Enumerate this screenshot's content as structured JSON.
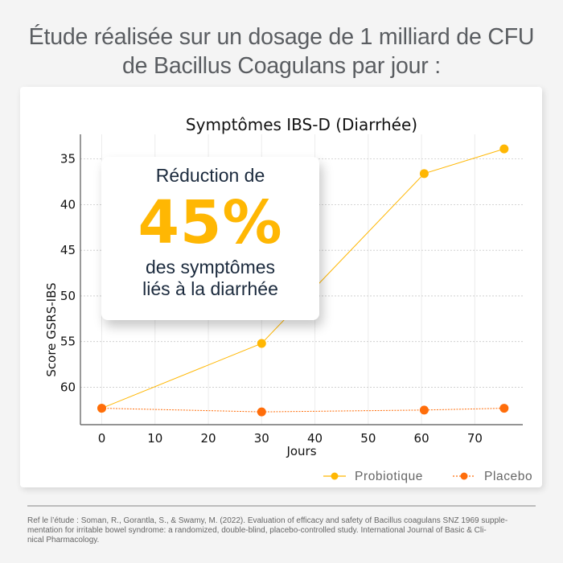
{
  "headline": {
    "line1": "Étude réalisée sur un dosage de 1 milliard de CFU",
    "line2": "de Bacillus Coagulans par jour :"
  },
  "callout": {
    "line1": "Réduction de",
    "value": "45%",
    "line2": "des symptômes",
    "line3": "liés à la diarrhée",
    "accent_color": "#ffb703",
    "text_color": "#1b2a3d"
  },
  "chart_data": {
    "type": "line",
    "title": "Symptômes IBS-D (Diarrhée)",
    "xlabel": "Jours",
    "ylabel": "Score GSRS-IBS",
    "xlim": [
      -4,
      79
    ],
    "ylim": [
      64.1,
      32.3
    ],
    "y_inverted": true,
    "xticks": [
      0,
      10,
      20,
      30,
      40,
      50,
      60,
      70
    ],
    "yticks": [
      35,
      40,
      45,
      50,
      55,
      60
    ],
    "grid": true,
    "legend_position": "bottom-right",
    "series": [
      {
        "name": "Probiotique",
        "color": "#ffb703",
        "line_style": "solid",
        "x": [
          0,
          30,
          60.5,
          75.5
        ],
        "y": [
          62.3,
          55.2,
          36.6,
          33.9
        ]
      },
      {
        "name": "Placebo",
        "color": "#ff6d0a",
        "line_style": "dotted",
        "x": [
          0,
          30,
          60.5,
          75.5
        ],
        "y": [
          62.3,
          62.7,
          62.5,
          62.3
        ]
      }
    ]
  },
  "footer": {
    "line1": "Ref le l’étude : Soman, R., Gorantla, S., & Swamy, M. (2022). Evaluation of efficacy and safety of Bacillus coagulans SNZ 1969 supple-",
    "line2": "mentation for irritable bowel syndrome: a randomized, double-blind, placebo-controlled study. International Journal of Basic & Cli-",
    "line3": "nical Pharmacology."
  }
}
